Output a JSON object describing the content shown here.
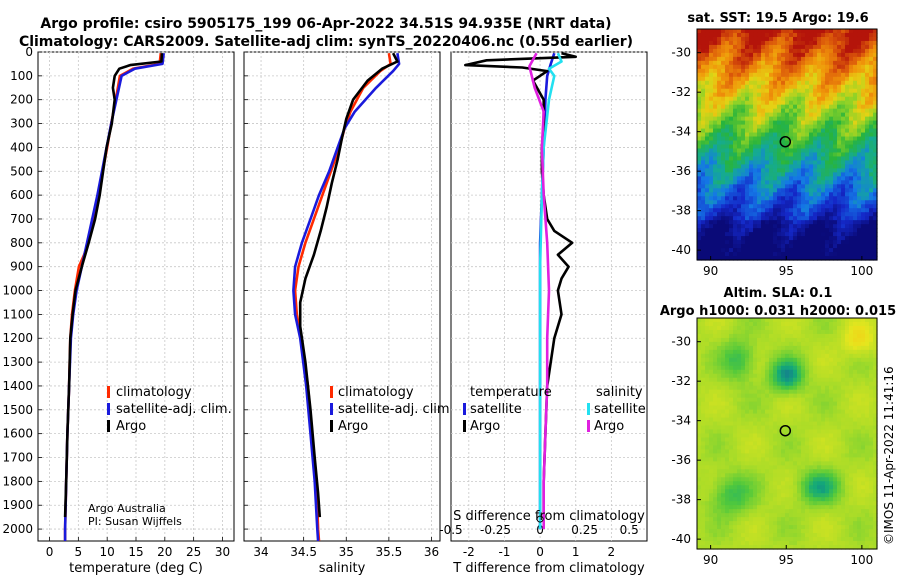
{
  "header": {
    "title_line1": "Argo profile: csiro 5905175_199 06-Apr-2022 34.51S 94.935E (NRT data)",
    "title_line2": "Climatology: CARS2009. Satellite-adj clim: synTS_20220406.nc (0.55d earlier)"
  },
  "credits": {
    "org": "Argo Australia",
    "pi": "PI: Susan Wijffels",
    "watermark": "©IMOS 11-Apr-2022 11:41:16"
  },
  "colors": {
    "climatology": "#ff2a00",
    "satellite": "#1a1adc",
    "argo": "#000000",
    "sat_salinity": "#22e0f0",
    "argo_salinity": "#e020e0"
  },
  "chart_data": [
    {
      "id": "temperature",
      "type": "line",
      "xlabel": "temperature (deg C)",
      "ylabel": "",
      "xlim": [
        -2,
        32
      ],
      "ylim": [
        2050,
        0
      ],
      "xticks": [
        0,
        5,
        10,
        15,
        20,
        25,
        30
      ],
      "yticks": [
        0,
        100,
        200,
        300,
        400,
        500,
        600,
        700,
        800,
        900,
        1000,
        1100,
        1200,
        1300,
        1400,
        1500,
        1600,
        1700,
        1800,
        1900,
        2000
      ],
      "grid": true,
      "legend": [
        "climatology",
        "satellite-adj. clim.",
        "Argo"
      ],
      "series": [
        {
          "name": "climatology",
          "color": "#ff2a00",
          "points": [
            [
              19.3,
              5
            ],
            [
              19.1,
              50
            ],
            [
              14.5,
              70
            ],
            [
              12.2,
              100
            ],
            [
              11.5,
              200
            ],
            [
              10.7,
              300
            ],
            [
              10,
              400
            ],
            [
              9.2,
              500
            ],
            [
              8.5,
              600
            ],
            [
              7.6,
              700
            ],
            [
              6.7,
              800
            ],
            [
              6,
              850
            ],
            [
              5.1,
              900
            ],
            [
              4.4,
              1000
            ],
            [
              3.9,
              1100
            ],
            [
              3.6,
              1200
            ],
            [
              3.4,
              1400
            ],
            [
              3.1,
              1600
            ],
            [
              2.9,
              1800
            ],
            [
              2.7,
              2000
            ],
            [
              2.7,
              2050
            ]
          ]
        },
        {
          "name": "satellite-adj. clim.",
          "color": "#1a1adc",
          "points": [
            [
              19.8,
              5
            ],
            [
              19.6,
              50
            ],
            [
              14.8,
              70
            ],
            [
              12.5,
              100
            ],
            [
              11.6,
              200
            ],
            [
              10.7,
              300
            ],
            [
              9.9,
              400
            ],
            [
              9.1,
              500
            ],
            [
              8.3,
              600
            ],
            [
              7.4,
              700
            ],
            [
              6.5,
              800
            ],
            [
              5.6,
              900
            ],
            [
              4.7,
              1000
            ],
            [
              4.1,
              1100
            ],
            [
              3.7,
              1200
            ],
            [
              3.4,
              1400
            ],
            [
              3.1,
              1600
            ],
            [
              2.9,
              1800
            ],
            [
              2.7,
              2000
            ],
            [
              2.7,
              2050
            ]
          ]
        },
        {
          "name": "Argo",
          "color": "#000000",
          "points": [
            [
              19.5,
              5
            ],
            [
              19.4,
              40
            ],
            [
              14,
              55
            ],
            [
              12.1,
              70
            ],
            [
              11.3,
              100
            ],
            [
              11,
              150
            ],
            [
              11.3,
              200
            ],
            [
              10.8,
              300
            ],
            [
              9.9,
              400
            ],
            [
              9.3,
              500
            ],
            [
              8.7,
              600
            ],
            [
              7.9,
              700
            ],
            [
              6.8,
              800
            ],
            [
              5.6,
              900
            ],
            [
              4.5,
              1000
            ],
            [
              4,
              1100
            ],
            [
              3.6,
              1200
            ],
            [
              3.4,
              1400
            ],
            [
              3.1,
              1600
            ],
            [
              2.9,
              1800
            ],
            [
              2.7,
              1950
            ]
          ]
        }
      ]
    },
    {
      "id": "salinity",
      "type": "line",
      "xlabel": "salinity",
      "ylabel": "",
      "xlim": [
        33.8,
        36.1
      ],
      "ylim": [
        2050,
        0
      ],
      "xticks": [
        34,
        34.5,
        35,
        35.5,
        36
      ],
      "grid": true,
      "legend": [
        "climatology",
        "satellite-adj. clim.",
        "Argo"
      ],
      "series": [
        {
          "name": "climatology",
          "color": "#ff2a00",
          "points": [
            [
              35.5,
              5
            ],
            [
              35.52,
              50
            ],
            [
              35.4,
              80
            ],
            [
              35.2,
              150
            ],
            [
              35.05,
              250
            ],
            [
              34.98,
              320
            ],
            [
              34.92,
              400
            ],
            [
              34.82,
              500
            ],
            [
              34.72,
              600
            ],
            [
              34.62,
              700
            ],
            [
              34.52,
              800
            ],
            [
              34.44,
              900
            ],
            [
              34.4,
              1000
            ],
            [
              34.42,
              1100
            ],
            [
              34.47,
              1200
            ],
            [
              34.55,
              1400
            ],
            [
              34.6,
              1600
            ],
            [
              34.65,
              1800
            ],
            [
              34.67,
              2000
            ],
            [
              34.68,
              2050
            ]
          ]
        },
        {
          "name": "satellite-adj. clim.",
          "color": "#1a1adc",
          "points": [
            [
              35.6,
              5
            ],
            [
              35.62,
              50
            ],
            [
              35.55,
              80
            ],
            [
              35.35,
              150
            ],
            [
              35.1,
              250
            ],
            [
              34.98,
              320
            ],
            [
              34.9,
              400
            ],
            [
              34.8,
              500
            ],
            [
              34.68,
              600
            ],
            [
              34.58,
              700
            ],
            [
              34.48,
              800
            ],
            [
              34.4,
              900
            ],
            [
              34.38,
              1000
            ],
            [
              34.4,
              1100
            ],
            [
              34.46,
              1200
            ],
            [
              34.53,
              1400
            ],
            [
              34.58,
              1600
            ],
            [
              34.63,
              1800
            ],
            [
              34.66,
              2000
            ],
            [
              34.67,
              2050
            ]
          ]
        },
        {
          "name": "Argo",
          "color": "#000000",
          "points": [
            [
              35.55,
              5
            ],
            [
              35.6,
              40
            ],
            [
              35.42,
              70
            ],
            [
              35.25,
              120
            ],
            [
              35.08,
              200
            ],
            [
              35,
              280
            ],
            [
              34.95,
              360
            ],
            [
              34.9,
              450
            ],
            [
              34.83,
              550
            ],
            [
              34.77,
              650
            ],
            [
              34.7,
              750
            ],
            [
              34.62,
              850
            ],
            [
              34.52,
              950
            ],
            [
              34.46,
              1050
            ],
            [
              34.46,
              1150
            ],
            [
              34.52,
              1300
            ],
            [
              34.58,
              1500
            ],
            [
              34.63,
              1700
            ],
            [
              34.67,
              1850
            ],
            [
              34.69,
              1950
            ]
          ]
        }
      ]
    },
    {
      "id": "difference",
      "type": "line",
      "xlabel": "T difference from climatology",
      "xlabel2": "S difference from climatology",
      "xlim": [
        -2.5,
        3
      ],
      "ylim": [
        2050,
        0
      ],
      "xticks": [
        -2,
        -1,
        0,
        1,
        2
      ],
      "xticks2": [
        "-0.5",
        "-0.25",
        "0",
        "0.25",
        "0.5"
      ],
      "xticks2_values": [
        -0.5,
        -0.25,
        0,
        0.25,
        0.5
      ],
      "legend_left_title": "temperature",
      "legend_right_title": "salinity",
      "legend": [
        "satellite",
        "Argo",
        "satellite",
        "Argo"
      ],
      "series": [
        {
          "name": "T satellite",
          "color": "#1a1adc",
          "points": [
            [
              0.4,
              5
            ],
            [
              0.3,
              50
            ],
            [
              0.2,
              100
            ],
            [
              0.15,
              200
            ],
            [
              0.1,
              400
            ],
            [
              0.05,
              600
            ],
            [
              0,
              800
            ],
            [
              0,
              1200
            ],
            [
              0,
              1600
            ],
            [
              0,
              2000
            ]
          ]
        },
        {
          "name": "T Argo",
          "color": "#000000",
          "points": [
            [
              0.6,
              5
            ],
            [
              1,
              20
            ],
            [
              -1.5,
              35
            ],
            [
              -2.1,
              55
            ],
            [
              -0.5,
              65
            ],
            [
              0.2,
              80
            ],
            [
              -0.2,
              120
            ],
            [
              0.1,
              200
            ],
            [
              0.1,
              300
            ],
            [
              0.05,
              400
            ],
            [
              0.05,
              500
            ],
            [
              0.1,
              600
            ],
            [
              0.2,
              700
            ],
            [
              0.4,
              750
            ],
            [
              0.9,
              800
            ],
            [
              0.5,
              850
            ],
            [
              0.8,
              900
            ],
            [
              0.6,
              950
            ],
            [
              0.5,
              1000
            ],
            [
              0.6,
              1100
            ],
            [
              0.4,
              1200
            ],
            [
              0.2,
              1400
            ],
            [
              0.15,
              1600
            ],
            [
              0.1,
              1800
            ],
            [
              0.1,
              1950
            ]
          ]
        },
        {
          "name": "S satellite",
          "color": "#22e0f0",
          "points": [
            [
              0.1,
              5
            ],
            [
              0.12,
              40
            ],
            [
              0.05,
              70
            ],
            [
              0.08,
              100
            ],
            [
              0.05,
              200
            ],
            [
              0.02,
              400
            ],
            [
              0.01,
              600
            ],
            [
              0,
              900
            ],
            [
              0,
              1400
            ],
            [
              0,
              2000
            ]
          ]
        },
        {
          "name": "S Argo",
          "color": "#e020e0",
          "points": [
            [
              -0.02,
              5
            ],
            [
              -0.06,
              60
            ],
            [
              -0.03,
              150
            ],
            [
              0.02,
              250
            ],
            [
              0.01,
              400
            ],
            [
              0.02,
              600
            ],
            [
              0.04,
              800
            ],
            [
              0.05,
              1000
            ],
            [
              0.04,
              1200
            ],
            [
              0.04,
              1400
            ],
            [
              0.03,
              1600
            ],
            [
              0.02,
              1800
            ],
            [
              0.02,
              2000
            ]
          ]
        }
      ]
    },
    {
      "id": "sst_map",
      "type": "heatmap",
      "title": "sat. SST: 19.5 Argo: 19.6",
      "xlim": [
        89.1,
        101
      ],
      "ylim": [
        -40.5,
        -28.8
      ],
      "xticks": [
        90,
        95,
        100
      ],
      "yticks": [
        -30,
        -32,
        -34,
        -36,
        -38,
        -40
      ],
      "marker": {
        "lon": 94.935,
        "lat": -34.51
      }
    },
    {
      "id": "sla_map",
      "type": "heatmap",
      "title_line1": "Altim. SLA: 0.1",
      "title_line2": "Argo h1000: 0.031 h2000: 0.015",
      "xlim": [
        89.1,
        101
      ],
      "ylim": [
        -40.5,
        -28.8
      ],
      "xticks": [
        90,
        95,
        100
      ],
      "yticks": [
        -30,
        -32,
        -34,
        -36,
        -38,
        -40
      ],
      "marker": {
        "lon": 94.935,
        "lat": -34.51
      }
    }
  ]
}
